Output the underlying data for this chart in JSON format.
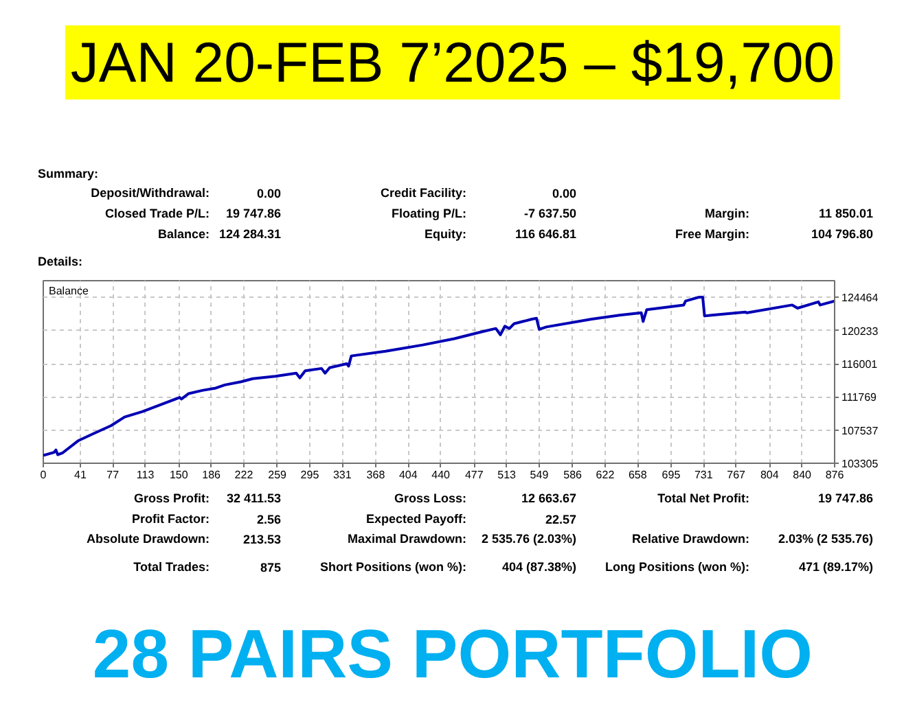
{
  "chart_data": {
    "type": "line",
    "title": "JAN 20-FEB 7’2025 – $19,700",
    "subtitle": "28 PAIRS PORTFOLIO",
    "annotations": [
      "Summary:",
      "Deposit/Withdrawal:",
      "0.00",
      "Credit Facility:",
      "0.00",
      "Closed Trade P/L:",
      "19 747.86",
      "Floating P/L:",
      "-7 637.50",
      "Margin:",
      "11 850.01",
      "Balance:",
      "124 284.31",
      "Equity:",
      "116 646.81",
      "Free Margin:",
      "104 796.80",
      "Details:",
      "Balance",
      "Gross Profit:",
      "32 411.53",
      "Gross Loss:",
      "12 663.67",
      "Total Net Profit:",
      "19 747.86",
      "Profit Factor:",
      "2.56",
      "Expected Payoff:",
      "22.57",
      "Absolute Drawdown:",
      "213.53",
      "Maximal Drawdown:",
      "2 535.76 (2.03%)",
      "Relative Drawdown:",
      "2.03% (2 535.76)",
      "Total Trades:",
      "875",
      "Short Positions (won %):",
      "404 (87.38%)",
      "Long Positions (won %):",
      "471 (89.17%)"
    ],
    "x": [
      0,
      12,
      14,
      16,
      21,
      39,
      54,
      75,
      90,
      110,
      135,
      151,
      153,
      161,
      176,
      191,
      201,
      219,
      232,
      257,
      280,
      284,
      290,
      308,
      312,
      317,
      336,
      338,
      341,
      379,
      420,
      455,
      486,
      501,
      506,
      511,
      516,
      521,
      541,
      546,
      549,
      557,
      607,
      638,
      662,
      664,
      668,
      709,
      711,
      726,
      730,
      732,
      740,
      777,
      779,
      829,
      835,
      858,
      860,
      876
    ],
    "series": [
      {
        "color": "#0000b4",
        "values": [
          104300,
          104700,
          105000,
          104400,
          104600,
          106200,
          107000,
          108100,
          109200,
          109900,
          111000,
          111700,
          111500,
          112200,
          112600,
          112900,
          113300,
          113700,
          114100,
          114400,
          114800,
          114200,
          115100,
          115400,
          114800,
          115500,
          116000,
          115700,
          117000,
          117600,
          118400,
          119200,
          120100,
          120500,
          119700,
          120800,
          120500,
          121100,
          121700,
          121800,
          120400,
          120700,
          121700,
          122200,
          122500,
          121400,
          122900,
          123500,
          124000,
          124500,
          124500,
          122100,
          122200,
          122600,
          122500,
          123500,
          123100,
          123900,
          123500,
          124000
        ]
      }
    ],
    "xlim": [
      0,
      876
    ],
    "ylim": [
      103305,
      126600
    ],
    "xticks": [
      0,
      41,
      77,
      113,
      150,
      186,
      222,
      259,
      295,
      331,
      368,
      404,
      440,
      477,
      513,
      549,
      586,
      622,
      658,
      695,
      731,
      767,
      804,
      840,
      876
    ],
    "yticks": [
      103305,
      107537,
      111769,
      116001,
      120233,
      124464
    ],
    "grid": true
  }
}
